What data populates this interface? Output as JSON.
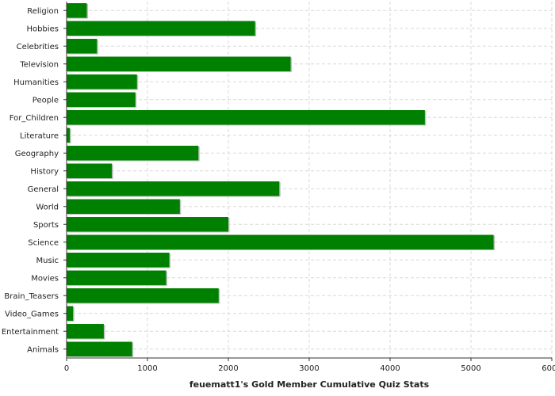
{
  "chart_data": {
    "type": "bar",
    "orientation": "horizontal",
    "title": "",
    "xlabel": "feuematt1's Gold Member Cumulative Quiz Stats",
    "ylabel": "",
    "xlim": [
      0,
      6000
    ],
    "xticks": [
      0,
      1000,
      2000,
      3000,
      4000,
      5000,
      6000
    ],
    "grid": true,
    "bar_color": "#008000",
    "categories": [
      "Religion",
      "Hobbies",
      "Celebrities",
      "Television",
      "Humanities",
      "People",
      "For_Children",
      "Literature",
      "Geography",
      "History",
      "General",
      "World",
      "Sports",
      "Science",
      "Music",
      "Movies",
      "Brain_Teasers",
      "Video_Games",
      "Entertainment",
      "Animals"
    ],
    "values": [
      250,
      2330,
      375,
      2770,
      870,
      850,
      4430,
      40,
      1630,
      560,
      2630,
      1400,
      2000,
      5280,
      1270,
      1230,
      1880,
      80,
      460,
      810
    ]
  }
}
